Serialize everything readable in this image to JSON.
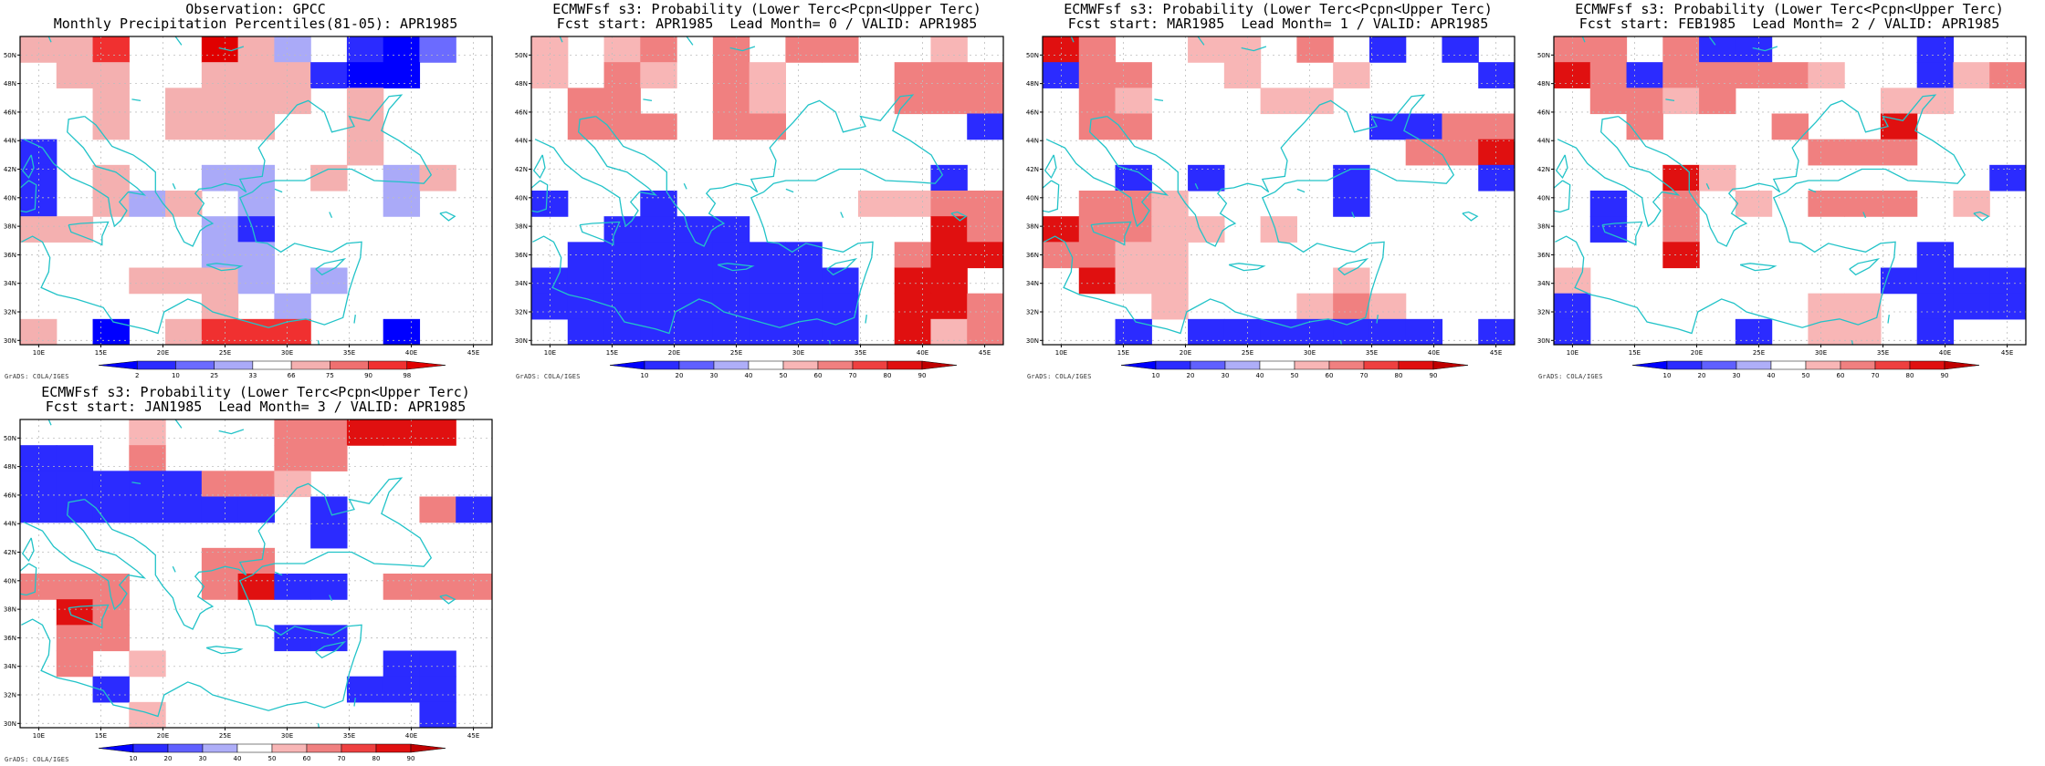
{
  "credit": "GrADS: COLA/IGES",
  "colors": {
    "coast": "#22c3c8",
    "grid": "#bdbdbd",
    "border": "#000000"
  },
  "axis": {
    "lon_labels": [
      "10E",
      "15E",
      "20E",
      "25E",
      "30E",
      "35E",
      "40E",
      "45E"
    ],
    "lat_labels": [
      "30N",
      "32N",
      "34N",
      "36N",
      "38N",
      "40N",
      "42N",
      "44N",
      "46N",
      "48N",
      "50N"
    ]
  },
  "palettes": {
    "percentile": {
      "labels": [
        "2",
        "10",
        "25",
        "33",
        "66",
        "75",
        "90",
        "98"
      ],
      "colors": [
        "#0000ff",
        "#2b2bff",
        "#6b6bff",
        "#aaaaf8",
        "#ffffff",
        "#f4b0b0",
        "#ef7070",
        "#f03030",
        "#e00000"
      ]
    },
    "probability": {
      "labels": [
        "10",
        "20",
        "30",
        "40",
        "50",
        "60",
        "70",
        "80",
        "90"
      ],
      "colors": [
        "#0000ff",
        "#2b2bff",
        "#6060ff",
        "#aeaef8",
        "#ffffff",
        "#f8b6b6",
        "#f08080",
        "#ee4040",
        "#e01010",
        "#c00000"
      ]
    }
  },
  "panels": [
    {
      "title1": "Observation: GPCC",
      "title2": "Monthly Precipitation Percentiles(81-05): APR1985",
      "palette": "percentile",
      "grid": [
        [
          "r",
          "r",
          "R",
          "w",
          "w",
          "T",
          "r",
          "p",
          "w",
          "b",
          "B",
          "l",
          "w"
        ],
        [
          "w",
          "r",
          "r",
          "w",
          "w",
          "r",
          "r",
          "r",
          "b",
          "B",
          "B",
          "w",
          "w"
        ],
        [
          "w",
          "w",
          "r",
          "w",
          "r",
          "r",
          "r",
          "r",
          "w",
          "r",
          "w",
          "w",
          "w"
        ],
        [
          "w",
          "w",
          "r",
          "w",
          "r",
          "r",
          "r",
          "w",
          "w",
          "r",
          "w",
          "w",
          "w"
        ],
        [
          "b",
          "w",
          "w",
          "w",
          "w",
          "w",
          "w",
          "w",
          "w",
          "r",
          "w",
          "w",
          "w"
        ],
        [
          "b",
          "w",
          "r",
          "w",
          "w",
          "p",
          "p",
          "w",
          "r",
          "w",
          "p",
          "r",
          "w"
        ],
        [
          "b",
          "w",
          "r",
          "p",
          "r",
          "w",
          "p",
          "w",
          "w",
          "w",
          "p",
          "w",
          "w"
        ],
        [
          "r",
          "r",
          "w",
          "w",
          "w",
          "p",
          "b",
          "w",
          "w",
          "w",
          "w",
          "w",
          "w"
        ],
        [
          "w",
          "w",
          "w",
          "w",
          "w",
          "p",
          "p",
          "w",
          "w",
          "w",
          "w",
          "w",
          "w"
        ],
        [
          "w",
          "w",
          "w",
          "r",
          "r",
          "r",
          "p",
          "w",
          "p",
          "w",
          "w",
          "w",
          "w"
        ],
        [
          "w",
          "w",
          "w",
          "w",
          "w",
          "r",
          "w",
          "p",
          "w",
          "w",
          "w",
          "w",
          "w"
        ],
        [
          "r",
          "w",
          "B",
          "w",
          "r",
          "R",
          "R",
          "R",
          "w",
          "w",
          "B",
          "w",
          "w"
        ]
      ]
    },
    {
      "title1": "ECMWFsf s3: Probability (Lower Terc<Pcpn<Upper Terc)",
      "title2": "Fcst start: APR1985  Lead Month= 0 / VALID: APR1985",
      "palette": "probability",
      "grid": [
        [
          "p",
          "w",
          "p",
          "r",
          "w",
          "r",
          "w",
          "r",
          "r",
          "w",
          "w",
          "p",
          "w"
        ],
        [
          "p",
          "w",
          "r",
          "p",
          "w",
          "r",
          "p",
          "w",
          "w",
          "w",
          "r",
          "r",
          "r"
        ],
        [
          "w",
          "r",
          "r",
          "w",
          "w",
          "r",
          "p",
          "w",
          "w",
          "w",
          "r",
          "r",
          "r"
        ],
        [
          "w",
          "r",
          "r",
          "r",
          "w",
          "r",
          "r",
          "w",
          "w",
          "w",
          "w",
          "w",
          "B"
        ],
        [
          "w",
          "w",
          "w",
          "w",
          "w",
          "w",
          "w",
          "w",
          "w",
          "w",
          "w",
          "w",
          "w"
        ],
        [
          "w",
          "w",
          "w",
          "w",
          "w",
          "w",
          "w",
          "w",
          "w",
          "w",
          "w",
          "B",
          "w"
        ],
        [
          "B",
          "w",
          "w",
          "B",
          "w",
          "w",
          "w",
          "w",
          "w",
          "p",
          "p",
          "r",
          "r"
        ],
        [
          "w",
          "w",
          "B",
          "B",
          "B",
          "B",
          "w",
          "w",
          "w",
          "w",
          "w",
          "R",
          "r"
        ],
        [
          "w",
          "B",
          "B",
          "B",
          "B",
          "B",
          "B",
          "B",
          "w",
          "w",
          "r",
          "R",
          "R"
        ],
        [
          "B",
          "B",
          "B",
          "B",
          "B",
          "B",
          "B",
          "B",
          "B",
          "w",
          "R",
          "R",
          "w"
        ],
        [
          "B",
          "B",
          "B",
          "B",
          "B",
          "B",
          "B",
          "B",
          "B",
          "w",
          "R",
          "R",
          "r"
        ],
        [
          "w",
          "B",
          "B",
          "B",
          "B",
          "B",
          "B",
          "B",
          "B",
          "w",
          "R",
          "p",
          "r"
        ]
      ]
    },
    {
      "title1": "ECMWFsf s3: Probability (Lower Terc<Pcpn<Upper Terc)",
      "title2": "Fcst start: MAR1985  Lead Month= 1 / VALID: APR1985",
      "palette": "probability",
      "grid": [
        [
          "R",
          "r",
          "w",
          "w",
          "p",
          "p",
          "w",
          "r",
          "w",
          "B",
          "w",
          "B",
          "w"
        ],
        [
          "B",
          "r",
          "r",
          "w",
          "w",
          "p",
          "w",
          "w",
          "p",
          "w",
          "w",
          "w",
          "B"
        ],
        [
          "w",
          "r",
          "p",
          "w",
          "w",
          "w",
          "p",
          "p",
          "w",
          "w",
          "w",
          "w",
          "w"
        ],
        [
          "w",
          "r",
          "r",
          "w",
          "w",
          "w",
          "w",
          "w",
          "w",
          "B",
          "B",
          "r",
          "r"
        ],
        [
          "w",
          "w",
          "w",
          "w",
          "w",
          "w",
          "w",
          "w",
          "w",
          "w",
          "r",
          "r",
          "R"
        ],
        [
          "w",
          "w",
          "B",
          "w",
          "B",
          "w",
          "w",
          "w",
          "B",
          "w",
          "w",
          "w",
          "B"
        ],
        [
          "w",
          "r",
          "r",
          "p",
          "w",
          "w",
          "w",
          "w",
          "B",
          "w",
          "w",
          "w",
          "w"
        ],
        [
          "R",
          "r",
          "r",
          "p",
          "p",
          "w",
          "p",
          "w",
          "w",
          "w",
          "w",
          "w",
          "w"
        ],
        [
          "r",
          "r",
          "p",
          "p",
          "w",
          "w",
          "w",
          "w",
          "w",
          "w",
          "w",
          "w",
          "w"
        ],
        [
          "w",
          "R",
          "p",
          "p",
          "w",
          "w",
          "w",
          "w",
          "p",
          "w",
          "w",
          "w",
          "w"
        ],
        [
          "w",
          "w",
          "w",
          "p",
          "w",
          "w",
          "w",
          "p",
          "r",
          "p",
          "w",
          "w",
          "w"
        ],
        [
          "w",
          "w",
          "B",
          "w",
          "B",
          "B",
          "B",
          "B",
          "B",
          "B",
          "B",
          "w",
          "B"
        ]
      ]
    },
    {
      "title1": "ECMWFsf s3: Probability (Lower Terc<Pcpn<Upper Terc)",
      "title2": "Fcst start: FEB1985  Lead Month= 2 / VALID: APR1985",
      "palette": "probability",
      "grid": [
        [
          "r",
          "r",
          "w",
          "r",
          "B",
          "B",
          "w",
          "w",
          "w",
          "w",
          "B",
          "w",
          "w"
        ],
        [
          "R",
          "r",
          "B",
          "r",
          "r",
          "r",
          "r",
          "p",
          "w",
          "w",
          "B",
          "p",
          "r"
        ],
        [
          "w",
          "r",
          "r",
          "p",
          "r",
          "w",
          "w",
          "w",
          "w",
          "p",
          "p",
          "w",
          "w"
        ],
        [
          "w",
          "w",
          "r",
          "w",
          "w",
          "w",
          "r",
          "w",
          "w",
          "R",
          "w",
          "w",
          "w"
        ],
        [
          "w",
          "w",
          "w",
          "w",
          "w",
          "w",
          "w",
          "r",
          "r",
          "r",
          "w",
          "w",
          "w"
        ],
        [
          "w",
          "w",
          "w",
          "R",
          "p",
          "w",
          "w",
          "w",
          "w",
          "w",
          "w",
          "w",
          "B"
        ],
        [
          "w",
          "B",
          "w",
          "r",
          "w",
          "p",
          "w",
          "r",
          "r",
          "r",
          "w",
          "p",
          "w"
        ],
        [
          "w",
          "B",
          "w",
          "r",
          "w",
          "w",
          "w",
          "w",
          "w",
          "w",
          "w",
          "w",
          "w"
        ],
        [
          "w",
          "w",
          "w",
          "R",
          "w",
          "w",
          "w",
          "w",
          "w",
          "w",
          "B",
          "w",
          "w"
        ],
        [
          "p",
          "w",
          "w",
          "w",
          "w",
          "w",
          "w",
          "w",
          "w",
          "B",
          "B",
          "B",
          "B"
        ],
        [
          "B",
          "w",
          "w",
          "w",
          "w",
          "w",
          "w",
          "p",
          "p",
          "w",
          "B",
          "B",
          "B"
        ],
        [
          "B",
          "w",
          "w",
          "w",
          "w",
          "B",
          "w",
          "p",
          "p",
          "w",
          "B",
          "w",
          "w"
        ]
      ]
    },
    {
      "title1": "ECMWFsf s3: Probability (Lower Terc<Pcpn<Upper Terc)",
      "title2": "Fcst start: JAN1985  Lead Month= 3 / VALID: APR1985",
      "palette": "probability",
      "grid": [
        [
          "w",
          "w",
          "w",
          "p",
          "w",
          "w",
          "w",
          "r",
          "r",
          "R",
          "R",
          "R",
          "w"
        ],
        [
          "B",
          "B",
          "w",
          "r",
          "w",
          "w",
          "w",
          "r",
          "r",
          "w",
          "w",
          "w",
          "w"
        ],
        [
          "B",
          "B",
          "B",
          "B",
          "B",
          "r",
          "r",
          "p",
          "w",
          "w",
          "w",
          "w",
          "w"
        ],
        [
          "B",
          "B",
          "B",
          "B",
          "B",
          "B",
          "B",
          "w",
          "B",
          "w",
          "w",
          "r",
          "B"
        ],
        [
          "w",
          "w",
          "w",
          "w",
          "w",
          "w",
          "w",
          "w",
          "B",
          "w",
          "w",
          "w",
          "w"
        ],
        [
          "w",
          "w",
          "w",
          "w",
          "w",
          "r",
          "r",
          "w",
          "w",
          "w",
          "w",
          "w",
          "w"
        ],
        [
          "r",
          "r",
          "r",
          "w",
          "w",
          "r",
          "R",
          "B",
          "B",
          "w",
          "r",
          "r",
          "r"
        ],
        [
          "w",
          "R",
          "r",
          "w",
          "w",
          "w",
          "w",
          "w",
          "w",
          "w",
          "w",
          "w",
          "w"
        ],
        [
          "w",
          "r",
          "r",
          "w",
          "w",
          "w",
          "w",
          "B",
          "B",
          "w",
          "w",
          "w",
          "w"
        ],
        [
          "w",
          "r",
          "w",
          "p",
          "w",
          "w",
          "w",
          "w",
          "w",
          "w",
          "B",
          "B",
          "w"
        ],
        [
          "w",
          "w",
          "B",
          "w",
          "w",
          "w",
          "w",
          "w",
          "w",
          "B",
          "B",
          "B",
          "w"
        ],
        [
          "w",
          "w",
          "w",
          "p",
          "w",
          "w",
          "w",
          "w",
          "w",
          "w",
          "w",
          "B",
          "w"
        ]
      ]
    }
  ]
}
